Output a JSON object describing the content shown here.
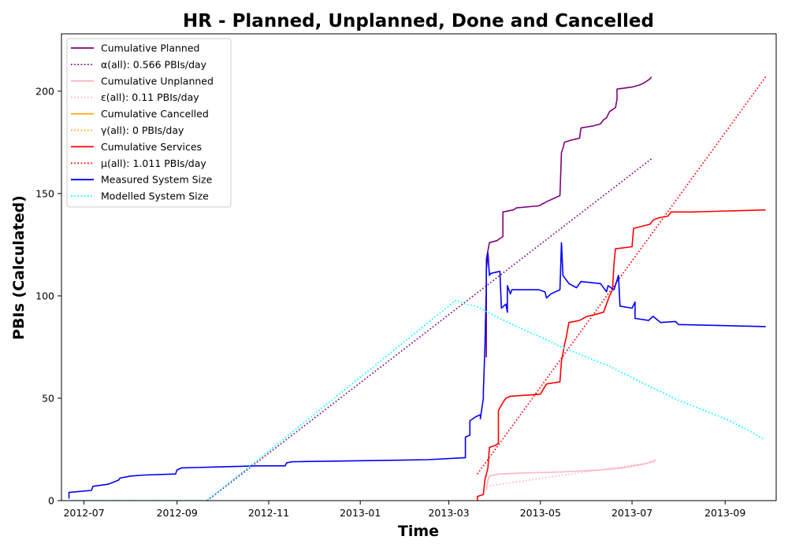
{
  "chart_data": {
    "type": "line",
    "title": "HR - Planned, Unplanned, Done  and Cancelled",
    "xlabel": "Time",
    "ylabel": "PBIs (Calculated)",
    "xlim": [
      "2012-06-16",
      "2013-10-05"
    ],
    "ylim": [
      0,
      228
    ],
    "x_ticks": [
      "2012-07",
      "2012-09",
      "2012-11",
      "2013-01",
      "2013-03",
      "2013-05",
      "2013-07",
      "2013-09"
    ],
    "x_tick_dates": [
      "2012-07-01",
      "2012-09-01",
      "2012-11-01",
      "2013-01-01",
      "2013-03-01",
      "2013-05-01",
      "2013-07-01",
      "2013-09-01"
    ],
    "y_ticks": [
      0,
      50,
      100,
      150,
      200
    ],
    "grid": false,
    "legend_placement": "top-left",
    "series": [
      {
        "name": "Cumulative Planned",
        "color": "#800080",
        "style": "solid",
        "points": [
          [
            "2013-03-26",
            70
          ],
          [
            "2013-03-26",
            118
          ],
          [
            "2013-03-28",
            126
          ],
          [
            "2013-04-02",
            127
          ],
          [
            "2013-04-04",
            128
          ],
          [
            "2013-04-06",
            129
          ],
          [
            "2013-04-06",
            141
          ],
          [
            "2013-04-13",
            142
          ],
          [
            "2013-04-15",
            143
          ],
          [
            "2013-04-30",
            144
          ],
          [
            "2013-05-05",
            146
          ],
          [
            "2013-05-14",
            149
          ],
          [
            "2013-05-15",
            170
          ],
          [
            "2013-05-16",
            172
          ],
          [
            "2013-05-17",
            175
          ],
          [
            "2013-05-21",
            176
          ],
          [
            "2013-05-27",
            177
          ],
          [
            "2013-05-28",
            182
          ],
          [
            "2013-06-05",
            183
          ],
          [
            "2013-06-10",
            184
          ],
          [
            "2013-06-12",
            186
          ],
          [
            "2013-06-14",
            187
          ],
          [
            "2013-06-16",
            190
          ],
          [
            "2013-06-18",
            191
          ],
          [
            "2013-06-20",
            192
          ],
          [
            "2013-06-21",
            196
          ],
          [
            "2013-06-21",
            201
          ],
          [
            "2013-07-01",
            202
          ],
          [
            "2013-07-06",
            203
          ],
          [
            "2013-07-09",
            204
          ],
          [
            "2013-07-13",
            206
          ],
          [
            "2013-07-14",
            207
          ]
        ]
      },
      {
        "name": "α(all): 0.566 PBIs/day",
        "color": "#800080",
        "style": "dotted",
        "points": [
          [
            "2012-09-21",
            0
          ],
          [
            "2013-07-14",
            167
          ]
        ]
      },
      {
        "name": "Cumulative Unplanned",
        "color": "#ffb6c1",
        "style": "solid",
        "points": [
          [
            "2013-03-26",
            5
          ],
          [
            "2013-03-27",
            10
          ],
          [
            "2013-03-28",
            12
          ],
          [
            "2013-04-03",
            13
          ],
          [
            "2013-04-20",
            13.5
          ],
          [
            "2013-05-15",
            14
          ],
          [
            "2013-06-10",
            15
          ],
          [
            "2013-06-25",
            16
          ],
          [
            "2013-07-10",
            18
          ],
          [
            "2013-07-17",
            20
          ]
        ]
      },
      {
        "name": "ε(all): 0.11 PBIs/day",
        "color": "#ffb6c1",
        "style": "dotted",
        "points": [
          [
            "2013-03-26",
            7
          ],
          [
            "2013-07-17",
            19
          ]
        ]
      },
      {
        "name": "Cumulative Cancelled",
        "color": "#ffa500",
        "style": "solid",
        "points": []
      },
      {
        "name": "γ(all): 0 PBIs/day",
        "color": "#ffa500",
        "style": "dotted",
        "points": []
      },
      {
        "name": "Cumulative Services",
        "color": "#ff0000",
        "style": "solid",
        "points": [
          [
            "2013-03-20",
            0
          ],
          [
            "2013-03-20",
            2
          ],
          [
            "2013-03-24",
            3
          ],
          [
            "2013-03-25",
            10
          ],
          [
            "2013-03-27",
            16
          ],
          [
            "2013-03-28",
            26
          ],
          [
            "2013-04-01",
            27
          ],
          [
            "2013-04-03",
            28
          ],
          [
            "2013-04-03",
            44
          ],
          [
            "2013-04-06",
            48
          ],
          [
            "2013-04-08",
            50
          ],
          [
            "2013-04-11",
            51
          ],
          [
            "2013-05-01",
            52
          ],
          [
            "2013-05-05",
            57
          ],
          [
            "2013-05-14",
            58
          ],
          [
            "2013-05-15",
            68
          ],
          [
            "2013-05-17",
            76
          ],
          [
            "2013-05-18",
            79
          ],
          [
            "2013-05-20",
            87
          ],
          [
            "2013-05-27",
            88
          ],
          [
            "2013-06-01",
            90
          ],
          [
            "2013-06-07",
            91
          ],
          [
            "2013-06-12",
            92
          ],
          [
            "2013-06-16",
            100
          ],
          [
            "2013-06-18",
            103
          ],
          [
            "2013-06-19",
            116
          ],
          [
            "2013-06-20",
            123
          ],
          [
            "2013-07-01",
            124
          ],
          [
            "2013-07-02",
            133
          ],
          [
            "2013-07-13",
            135
          ],
          [
            "2013-07-15",
            137
          ],
          [
            "2013-07-18",
            138
          ],
          [
            "2013-07-25",
            139
          ],
          [
            "2013-07-27",
            141
          ],
          [
            "2013-08-10",
            141
          ],
          [
            "2013-09-28",
            142
          ]
        ]
      },
      {
        "name": "μ(all): 1.011 PBIs/day",
        "color": "#ff0000",
        "style": "dotted",
        "points": [
          [
            "2013-03-20",
            13
          ],
          [
            "2013-09-28",
            207
          ]
        ]
      },
      {
        "name": "Measured System Size",
        "color": "#0000ff",
        "style": "solid",
        "points": [
          [
            "2012-06-21",
            1
          ],
          [
            "2012-06-21",
            4
          ],
          [
            "2012-07-06",
            5
          ],
          [
            "2012-07-07",
            7
          ],
          [
            "2012-07-17",
            8
          ],
          [
            "2012-07-24",
            10
          ],
          [
            "2012-07-25",
            11
          ],
          [
            "2012-08-01",
            12
          ],
          [
            "2012-08-10",
            12.5
          ],
          [
            "2012-08-31",
            13
          ],
          [
            "2012-09-01",
            15
          ],
          [
            "2012-09-04",
            16
          ],
          [
            "2012-10-25",
            17
          ],
          [
            "2012-11-12",
            17
          ],
          [
            "2012-11-13",
            18.5
          ],
          [
            "2012-11-17",
            19
          ],
          [
            "2013-02-15",
            20
          ],
          [
            "2013-03-12",
            21
          ],
          [
            "2013-03-12",
            31
          ],
          [
            "2013-03-15",
            32
          ],
          [
            "2013-03-15",
            39
          ],
          [
            "2013-03-19",
            41
          ],
          [
            "2013-03-22",
            42
          ],
          [
            "2013-03-22",
            40
          ],
          [
            "2013-03-24",
            50
          ],
          [
            "2013-03-24",
            53
          ],
          [
            "2013-03-25",
            74
          ],
          [
            "2013-03-26",
            105
          ],
          [
            "2013-03-26",
            113
          ],
          [
            "2013-03-27",
            121
          ],
          [
            "2013-03-28",
            110
          ],
          [
            "2013-03-29",
            111
          ],
          [
            "2013-04-04",
            112
          ],
          [
            "2013-04-05",
            94
          ],
          [
            "2013-04-08",
            96
          ],
          [
            "2013-04-09",
            92
          ],
          [
            "2013-04-09",
            105
          ],
          [
            "2013-04-11",
            101
          ],
          [
            "2013-04-12",
            103
          ],
          [
            "2013-04-30",
            103
          ],
          [
            "2013-05-04",
            102
          ],
          [
            "2013-05-05",
            99
          ],
          [
            "2013-05-08",
            101
          ],
          [
            "2013-05-14",
            103
          ],
          [
            "2013-05-15",
            126
          ],
          [
            "2013-05-16",
            110
          ],
          [
            "2013-05-20",
            106
          ],
          [
            "2013-05-25",
            104
          ],
          [
            "2013-05-28",
            107
          ],
          [
            "2013-06-10",
            106
          ],
          [
            "2013-06-14",
            102
          ],
          [
            "2013-06-15",
            105
          ],
          [
            "2013-06-19",
            103
          ],
          [
            "2013-06-22",
            110
          ],
          [
            "2013-06-23",
            95
          ],
          [
            "2013-07-01",
            94
          ],
          [
            "2013-07-03",
            97
          ],
          [
            "2013-07-03",
            89
          ],
          [
            "2013-07-12",
            88
          ],
          [
            "2013-07-15",
            90
          ],
          [
            "2013-07-20",
            87
          ],
          [
            "2013-07-30",
            87.5
          ],
          [
            "2013-08-01",
            86
          ],
          [
            "2013-09-28",
            85
          ]
        ]
      },
      {
        "name": "Modelled System Size",
        "color": "#00ffff",
        "style": "dotted",
        "points": [
          [
            "2012-06-21",
            0
          ],
          [
            "2012-09-21",
            0
          ],
          [
            "2013-03-06",
            98
          ],
          [
            "2013-03-12",
            96
          ],
          [
            "2013-03-19",
            95
          ],
          [
            "2013-04-01",
            90
          ],
          [
            "2013-04-15",
            85
          ],
          [
            "2013-05-01",
            80
          ],
          [
            "2013-05-15",
            75
          ],
          [
            "2013-06-01",
            70
          ],
          [
            "2013-06-15",
            66
          ],
          [
            "2013-07-01",
            60
          ],
          [
            "2013-07-15",
            55
          ],
          [
            "2013-08-01",
            49
          ],
          [
            "2013-08-15",
            45
          ],
          [
            "2013-09-01",
            40
          ],
          [
            "2013-09-15",
            35
          ],
          [
            "2013-09-27",
            30
          ]
        ]
      }
    ]
  }
}
